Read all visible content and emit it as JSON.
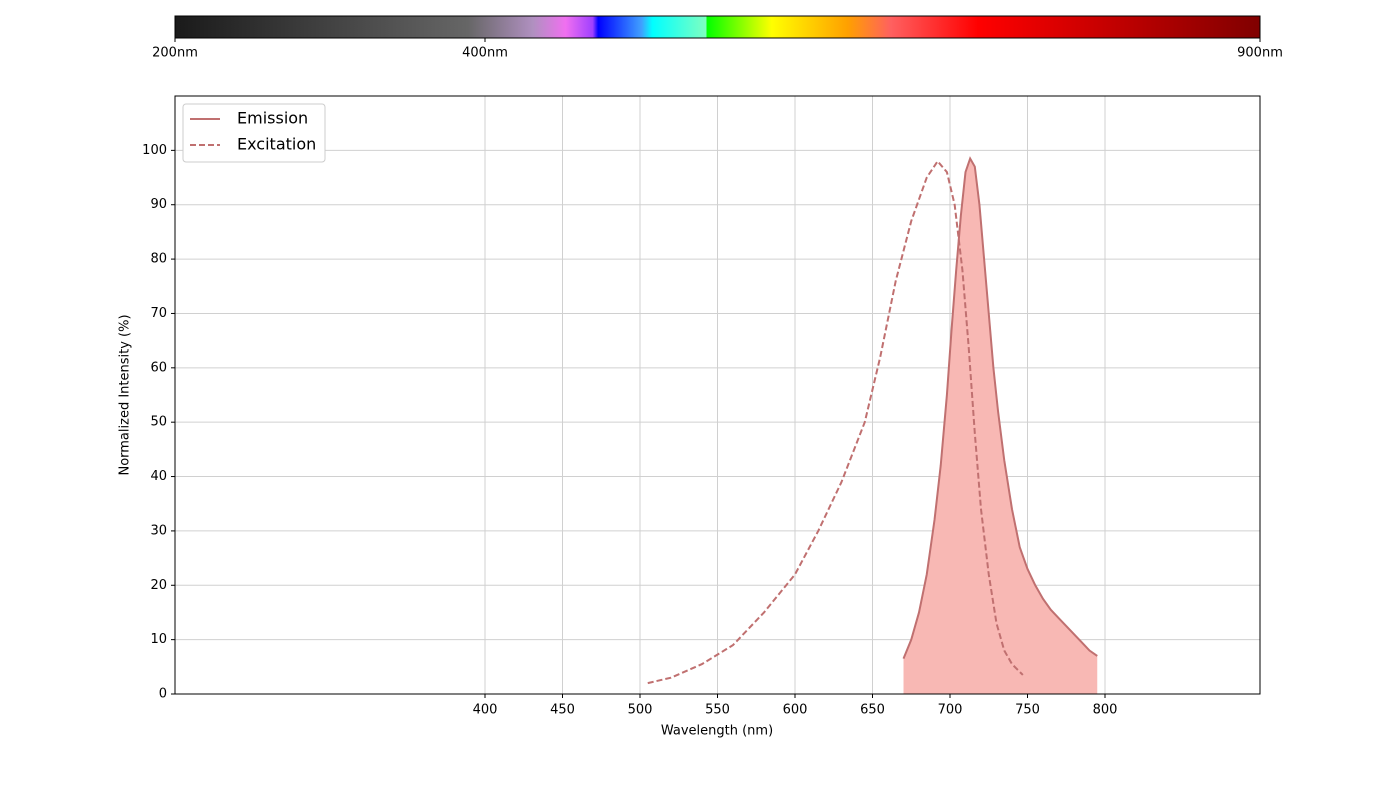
{
  "chart_data": {
    "type": "line",
    "xlabel": "Wavelength (nm)",
    "ylabel": "Normalized Intensity (%)",
    "xlim": [
      200,
      900
    ],
    "ylim": [
      0,
      110
    ],
    "xticks": [
      400,
      450,
      500,
      550,
      600,
      650,
      700,
      750,
      800
    ],
    "yticks": [
      0,
      10,
      20,
      30,
      40,
      50,
      60,
      70,
      80,
      90,
      100
    ],
    "grid": true,
    "legend": "upper left",
    "colorbar": {
      "range": [
        200,
        900
      ],
      "ticks": [
        {
          "value": 200,
          "label": "200nm"
        },
        {
          "value": 400,
          "label": "400nm"
        },
        {
          "value": 900,
          "label": "900nm"
        }
      ]
    },
    "series": [
      {
        "name": "Emission",
        "color": "#c07070",
        "dash": false,
        "fill": "#f8b8b4",
        "x": [
          670,
          675,
          680,
          685,
          690,
          694,
          698,
          701,
          704,
          707,
          710,
          713,
          716,
          719,
          722,
          725,
          728,
          731,
          735,
          740,
          745,
          750,
          755,
          760,
          765,
          770,
          775,
          780,
          785,
          790,
          795
        ],
        "values": [
          6.5,
          10,
          15,
          22,
          32,
          42,
          55,
          67,
          78,
          88,
          96,
          98.5,
          97,
          90,
          80,
          70,
          60,
          52,
          43,
          34,
          27,
          23,
          20,
          17.5,
          15.5,
          14,
          12.5,
          11,
          9.5,
          8,
          7
        ]
      },
      {
        "name": "Excitation",
        "color": "#c07070",
        "dash": true,
        "x": [
          505,
          520,
          540,
          560,
          580,
          600,
          615,
          630,
          645,
          655,
          665,
          675,
          685,
          692,
          698,
          703,
          708,
          712,
          716,
          720,
          725,
          730,
          735,
          740,
          747
        ],
        "values": [
          2,
          3,
          5.5,
          9,
          15,
          22,
          30,
          39,
          50,
          62,
          76,
          87,
          95,
          98,
          96,
          90,
          78,
          64,
          48,
          34,
          22,
          13,
          8,
          5.5,
          3.5
        ]
      }
    ]
  }
}
